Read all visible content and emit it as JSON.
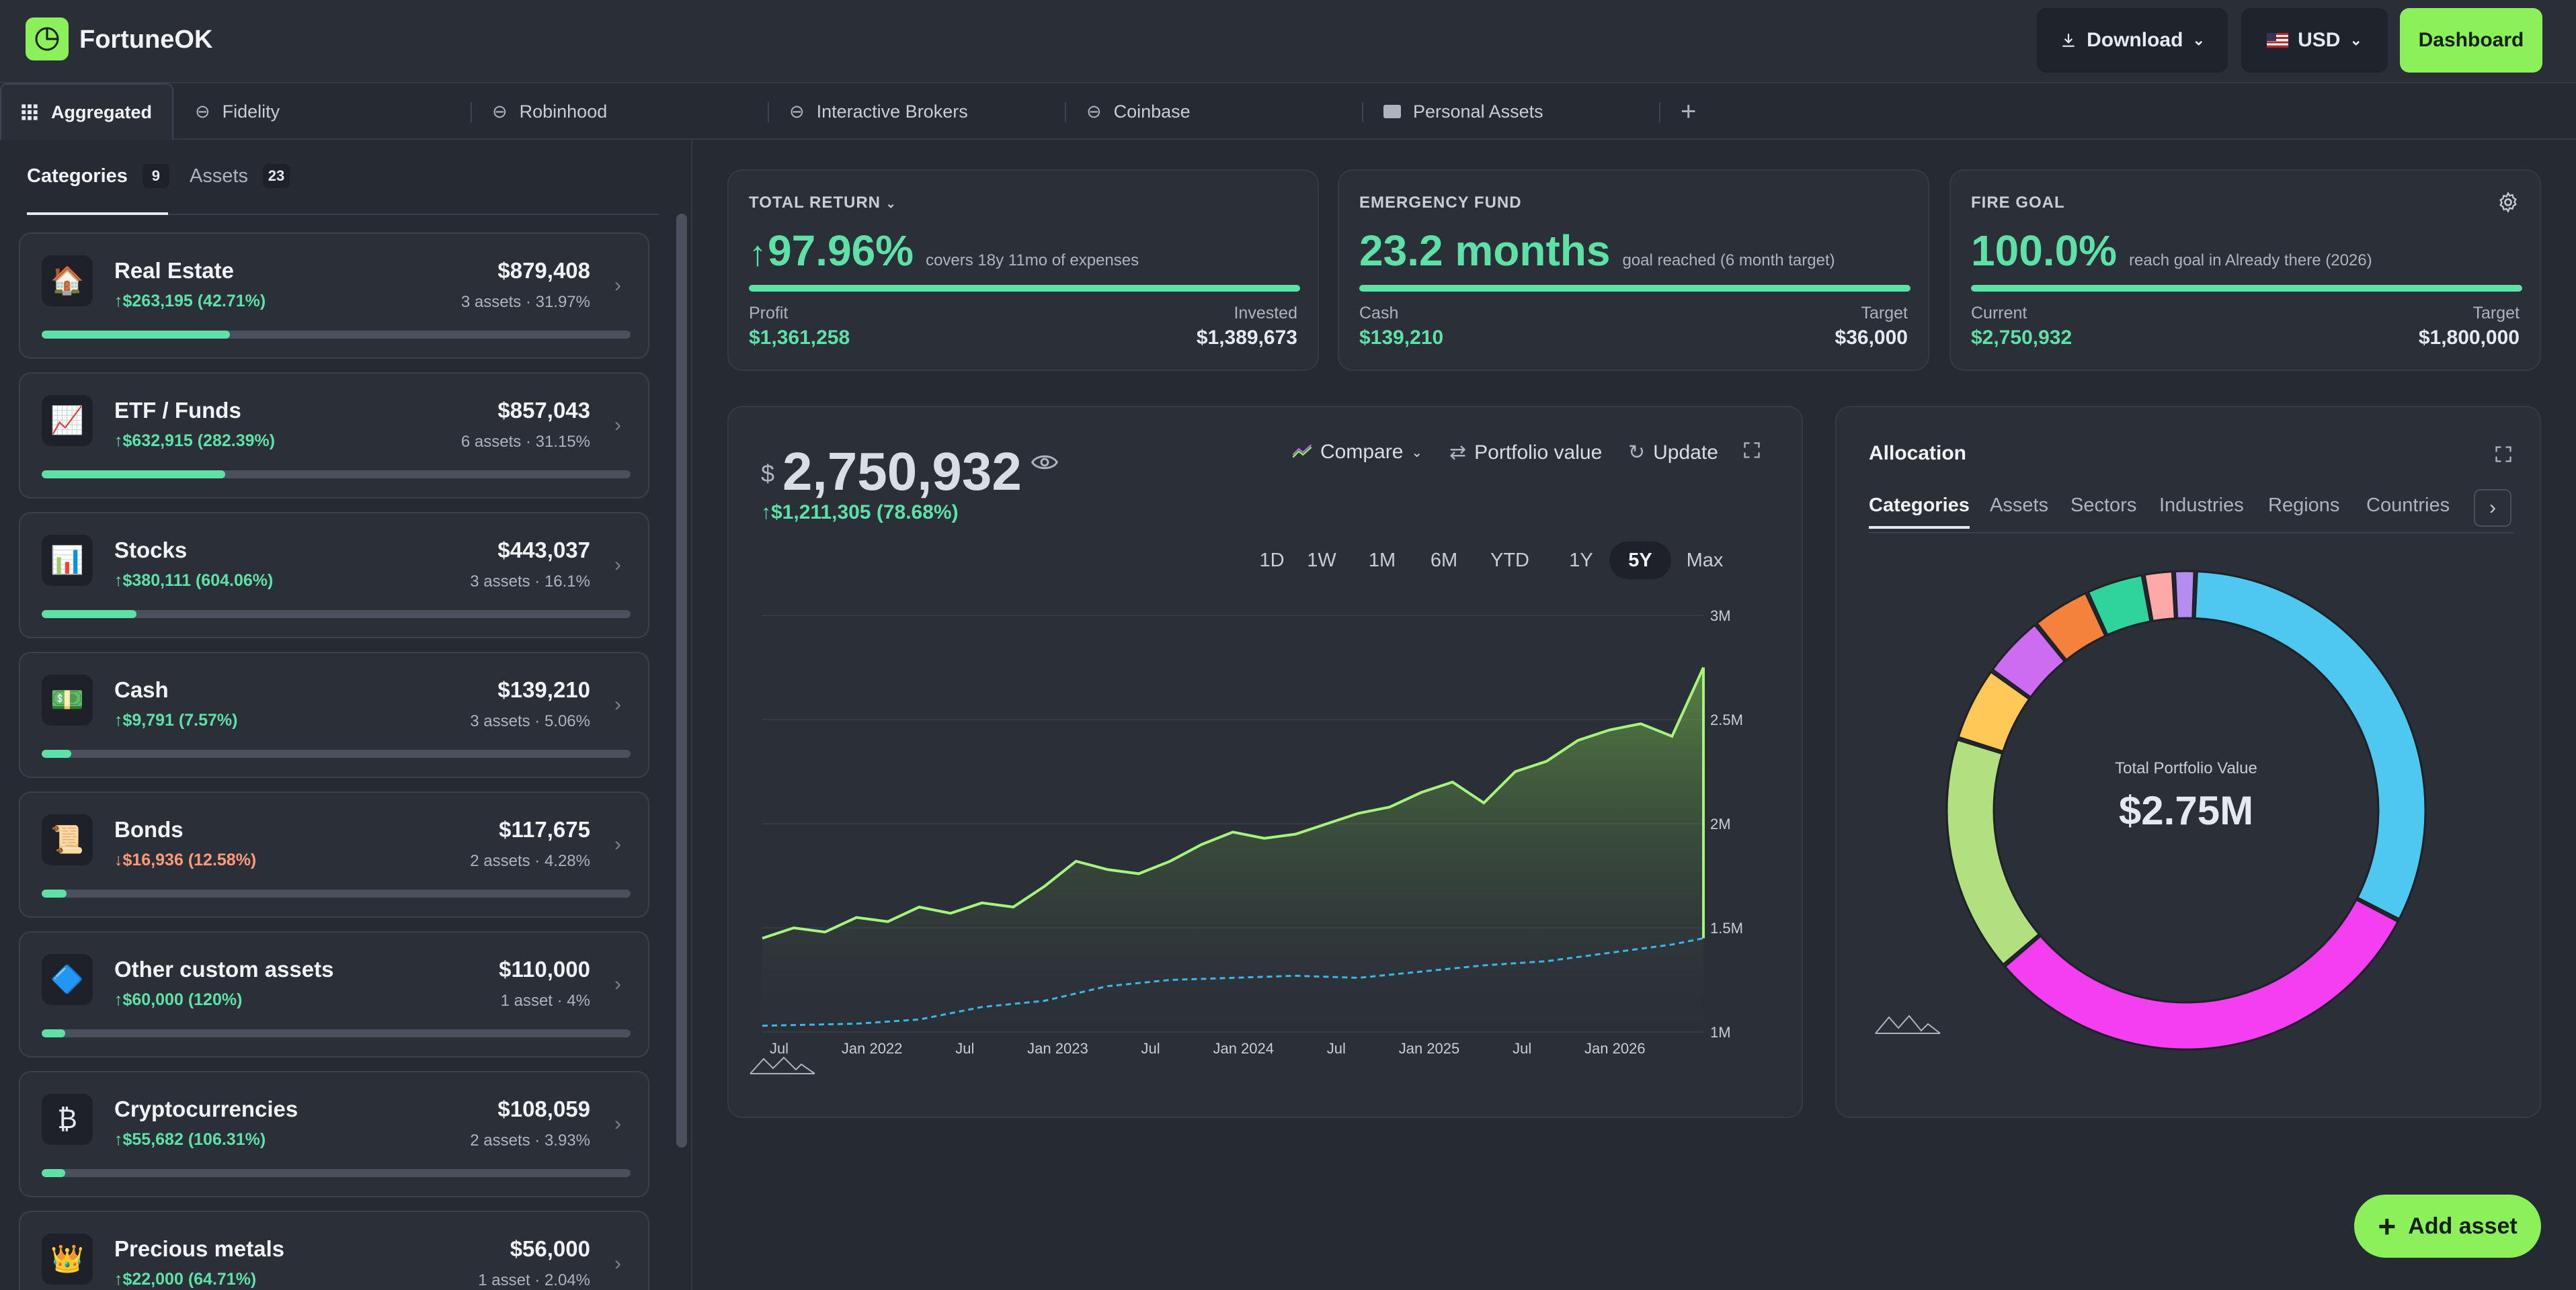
{
  "header": {
    "brand": "FortuneOK",
    "download_label": "Download",
    "currency_label": "USD",
    "dashboard_label": "Dashboard"
  },
  "tabs": [
    {
      "label": "Aggregated"
    },
    {
      "label": "Fidelity"
    },
    {
      "label": "Robinhood"
    },
    {
      "label": "Interactive Brokers"
    },
    {
      "label": "Coinbase"
    },
    {
      "label": "Personal Assets"
    }
  ],
  "sidebar": {
    "tabs": [
      {
        "label": "Categories",
        "count": "9"
      },
      {
        "label": "Assets",
        "count": "23"
      }
    ],
    "categories": [
      {
        "icon": "🏠",
        "name": "Real Estate",
        "value": "$879,408",
        "gain": "↑$263,195 (42.71%)",
        "gain_dir": "up",
        "sub": "3 assets · 31.97%",
        "share": 0.3197
      },
      {
        "icon": "📈",
        "name": "ETF / Funds",
        "value": "$857,043",
        "gain": "↑$632,915 (282.39%)",
        "gain_dir": "up",
        "sub": "6 assets · 31.15%",
        "share": 0.3115
      },
      {
        "icon": "📊",
        "name": "Stocks",
        "value": "$443,037",
        "gain": "↑$380,111 (604.06%)",
        "gain_dir": "up",
        "sub": "3 assets · 16.1%",
        "share": 0.161
      },
      {
        "icon": "💵",
        "name": "Cash",
        "value": "$139,210",
        "gain": "↑$9,791 (7.57%)",
        "gain_dir": "up",
        "sub": "3 assets · 5.06%",
        "share": 0.0506
      },
      {
        "icon": "📜",
        "name": "Bonds",
        "value": "$117,675",
        "gain": "↓$16,936 (12.58%)",
        "gain_dir": "down",
        "sub": "2 assets · 4.28%",
        "share": 0.0428
      },
      {
        "icon": "🔷",
        "name": "Other custom assets",
        "value": "$110,000",
        "gain": "↑$60,000 (120%)",
        "gain_dir": "up",
        "sub": "1 asset · 4%",
        "share": 0.04
      },
      {
        "icon": "₿",
        "name": "Cryptocurrencies",
        "value": "$108,059",
        "gain": "↑$55,682 (106.31%)",
        "gain_dir": "up",
        "sub": "2 assets · 3.93%",
        "share": 0.0393
      },
      {
        "icon": "👑",
        "name": "Precious metals",
        "value": "$56,000",
        "gain": "↑$22,000 (64.71%)",
        "gain_dir": "up",
        "sub": "1 asset · 2.04%",
        "share": 0.0204
      }
    ]
  },
  "stats": {
    "total_return": {
      "label": "TOTAL RETURN",
      "value": "97.96%",
      "note": "covers 18y 11mo of expenses",
      "left_label": "Profit",
      "left_value": "$1,361,258",
      "right_label": "Invested",
      "right_value": "$1,389,673",
      "progress": 1.0
    },
    "emergency": {
      "label": "EMERGENCY FUND",
      "value": "23.2 months",
      "note": "goal reached (6 month target)",
      "left_label": "Cash",
      "left_value": "$139,210",
      "right_label": "Target",
      "right_value": "$36,000",
      "progress": 1.0
    },
    "fire": {
      "label": "FIRE GOAL",
      "value": "100.0%",
      "note": "reach goal in Already there (2026)",
      "left_label": "Current",
      "left_value": "$2,750,932",
      "right_label": "Target",
      "right_value": "$1,800,000",
      "progress": 1.0
    }
  },
  "portfolio": {
    "currency": "$",
    "value": "2,750,932",
    "gain": "↑$1,211,305",
    "gain_pct": "(78.68%)",
    "compare_label": "Compare",
    "mode_label": "Portfolio value",
    "update_label": "Update",
    "ranges": [
      "1D",
      "1W",
      "1M",
      "6M",
      "YTD",
      "1Y",
      "5Y",
      "Max"
    ],
    "active_range": "5Y"
  },
  "chart_data": {
    "type": "area",
    "x_ticks": [
      "Jul",
      "Jan 2022",
      "Jul",
      "Jan 2023",
      "Jul",
      "Jan 2024",
      "Jul",
      "Jan 2025",
      "Jul",
      "Jan 2026"
    ],
    "y_ticks": [
      "3M",
      "2.5M",
      "2M",
      "1.5M",
      "1M"
    ],
    "ylim": [
      1000000,
      3000000
    ],
    "grid": true,
    "series": [
      {
        "x": [
          0,
          2,
          4,
          6,
          8,
          10,
          12,
          14,
          16,
          18,
          20,
          22,
          24,
          26,
          28,
          30,
          32,
          34,
          36,
          38,
          40,
          42,
          44,
          46,
          48,
          50,
          52,
          54,
          56,
          58,
          60
        ],
        "y": [
          1450000,
          1500000,
          1480000,
          1550000,
          1530000,
          1600000,
          1570000,
          1620000,
          1600000,
          1700000,
          1820000,
          1780000,
          1760000,
          1820000,
          1900000,
          1960000,
          1930000,
          1950000,
          2000000,
          2050000,
          2080000,
          2150000,
          2200000,
          2100000,
          2250000,
          2300000,
          2400000,
          2450000,
          2480000,
          2420000,
          2750000
        ],
        "color": "#a4f57a"
      },
      {
        "x": [
          0,
          6,
          10,
          14,
          18,
          22,
          26,
          30,
          34,
          38,
          42,
          46,
          50,
          54,
          58,
          60
        ],
        "y": [
          1030000,
          1040000,
          1060000,
          1120000,
          1150000,
          1220000,
          1250000,
          1260000,
          1270000,
          1260000,
          1290000,
          1320000,
          1340000,
          1380000,
          1420000,
          1450000
        ],
        "color": "#39b7e8",
        "dashed": true
      }
    ]
  },
  "allocation": {
    "title": "Allocation",
    "tabs": [
      "Categories",
      "Assets",
      "Sectors",
      "Industries",
      "Regions",
      "Countries"
    ],
    "center_label": "Total Portfolio Value",
    "center_value": "$2.75M",
    "slices": [
      {
        "name": "Real Estate",
        "share": 0.3197,
        "color": "#4fc8ef"
      },
      {
        "name": "ETF / Funds",
        "share": 0.3115,
        "color": "#f33ff0"
      },
      {
        "name": "Stocks",
        "share": 0.161,
        "color": "#b2e07e"
      },
      {
        "name": "Cash",
        "share": 0.0506,
        "color": "#ffc857"
      },
      {
        "name": "Bonds",
        "share": 0.0428,
        "color": "#cd6cf0"
      },
      {
        "name": "Other custom assets",
        "share": 0.04,
        "color": "#f5823c"
      },
      {
        "name": "Cryptocurrencies",
        "share": 0.0393,
        "color": "#2fd39c"
      },
      {
        "name": "Precious metals",
        "share": 0.0204,
        "color": "#ffa8a8"
      },
      {
        "name": "Other",
        "share": 0.0147,
        "color": "#b58cf0"
      }
    ]
  },
  "fab": {
    "label": "Add asset"
  }
}
